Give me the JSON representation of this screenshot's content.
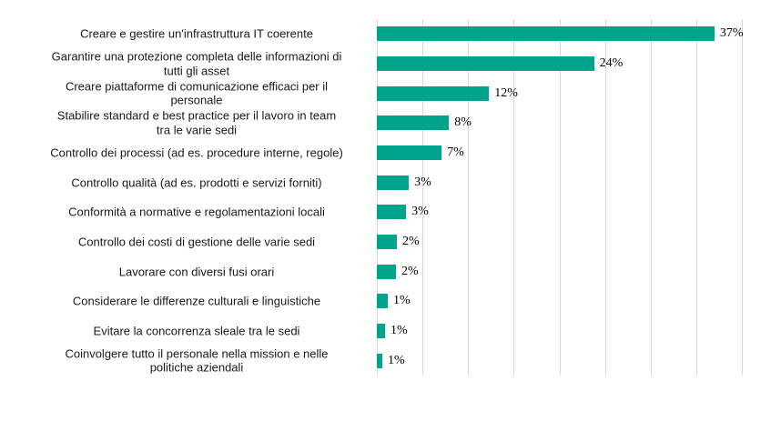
{
  "chart_data": {
    "type": "bar",
    "orientation": "horizontal",
    "title": "",
    "xlabel": "",
    "ylabel": "",
    "legend": false,
    "grid": true,
    "xlim": [
      0,
      40
    ],
    "grid_step": 5,
    "categories": [
      "Creare e gestire un'infrastruttura IT coerente",
      "Garantire una protezione completa delle informazioni di\ntutti gli asset",
      "Creare piattaforme di comunicazione efficaci per il\npersonale",
      "Stabilire standard e best practice per il lavoro in team\ntra le varie sedi",
      "Controllo dei processi (ad es. procedure interne, regole)",
      "Controllo qualità (ad es. prodotti e servizi forniti)",
      "Conformità a normative e regolamentazioni locali",
      "Controllo dei costi di gestione delle varie sedi",
      "Lavorare con diversi fusi orari",
      "Considerare le differenze culturali e linguistiche",
      "Evitare la concorrenza sleale tra le sedi",
      "Coinvolgere tutto il personale nella mission e nelle\npolitiche aziendali"
    ],
    "values": [
      37,
      24,
      12,
      8,
      7,
      3,
      3,
      2,
      2,
      1,
      1,
      1
    ],
    "data_labels": [
      "37%",
      "24%",
      "12%",
      "8%",
      "7%",
      "3%",
      "3%",
      "2%",
      "2%",
      "1%",
      "1%",
      "1%"
    ],
    "bar_lengths_pct_est": [
      37.0,
      23.8,
      12.3,
      7.9,
      7.1,
      3.5,
      3.2,
      2.2,
      2.1,
      1.2,
      0.9,
      0.6
    ],
    "colors": {
      "bar": "#00a38b",
      "gridline": "#d9d9d9",
      "category_text": "#1a1a1a",
      "value_text": "#000000",
      "background": "#ffffff"
    }
  }
}
